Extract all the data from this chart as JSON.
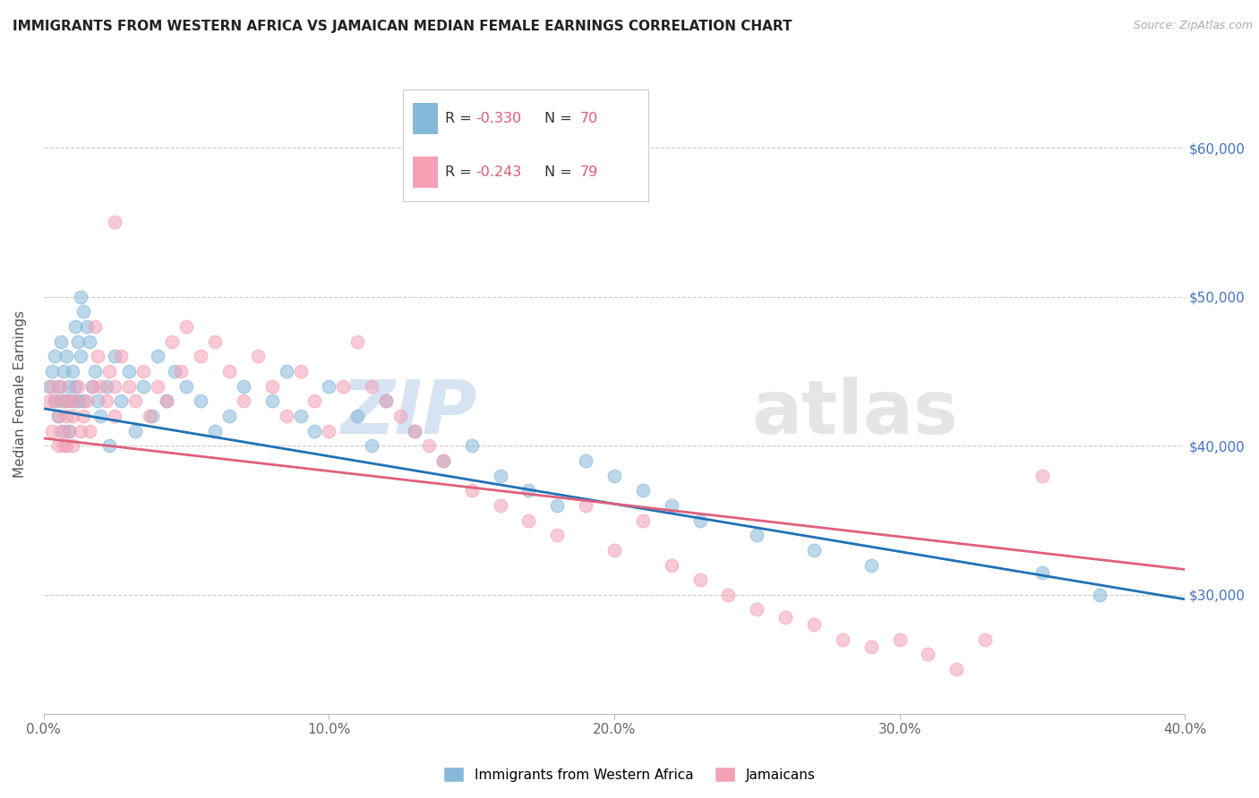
{
  "title": "IMMIGRANTS FROM WESTERN AFRICA VS JAMAICAN MEDIAN FEMALE EARNINGS CORRELATION CHART",
  "source": "Source: ZipAtlas.com",
  "ylabel": "Median Female Earnings",
  "xlim": [
    0.0,
    0.4
  ],
  "ylim": [
    22000,
    65000
  ],
  "yticks": [
    30000,
    40000,
    50000,
    60000
  ],
  "xticks": [
    0.0,
    0.1,
    0.2,
    0.3,
    0.4
  ],
  "blue_color": "#85b8d9",
  "pink_color": "#f4a0b5",
  "blue_line_color": "#2171b5",
  "pink_line_color": "#e0607a",
  "blue_R": -0.33,
  "blue_N": 70,
  "pink_R": -0.243,
  "pink_N": 79,
  "legend_label_blue": "Immigrants from Western Africa",
  "legend_label_pink": "Jamaicans",
  "right_tick_color": "#4472c4",
  "background_color": "#ffffff",
  "grid_color": "#cccccc",
  "blue_line_intercept": 42500,
  "blue_line_slope": -32000,
  "pink_line_intercept": 40500,
  "pink_line_slope": -22000
}
